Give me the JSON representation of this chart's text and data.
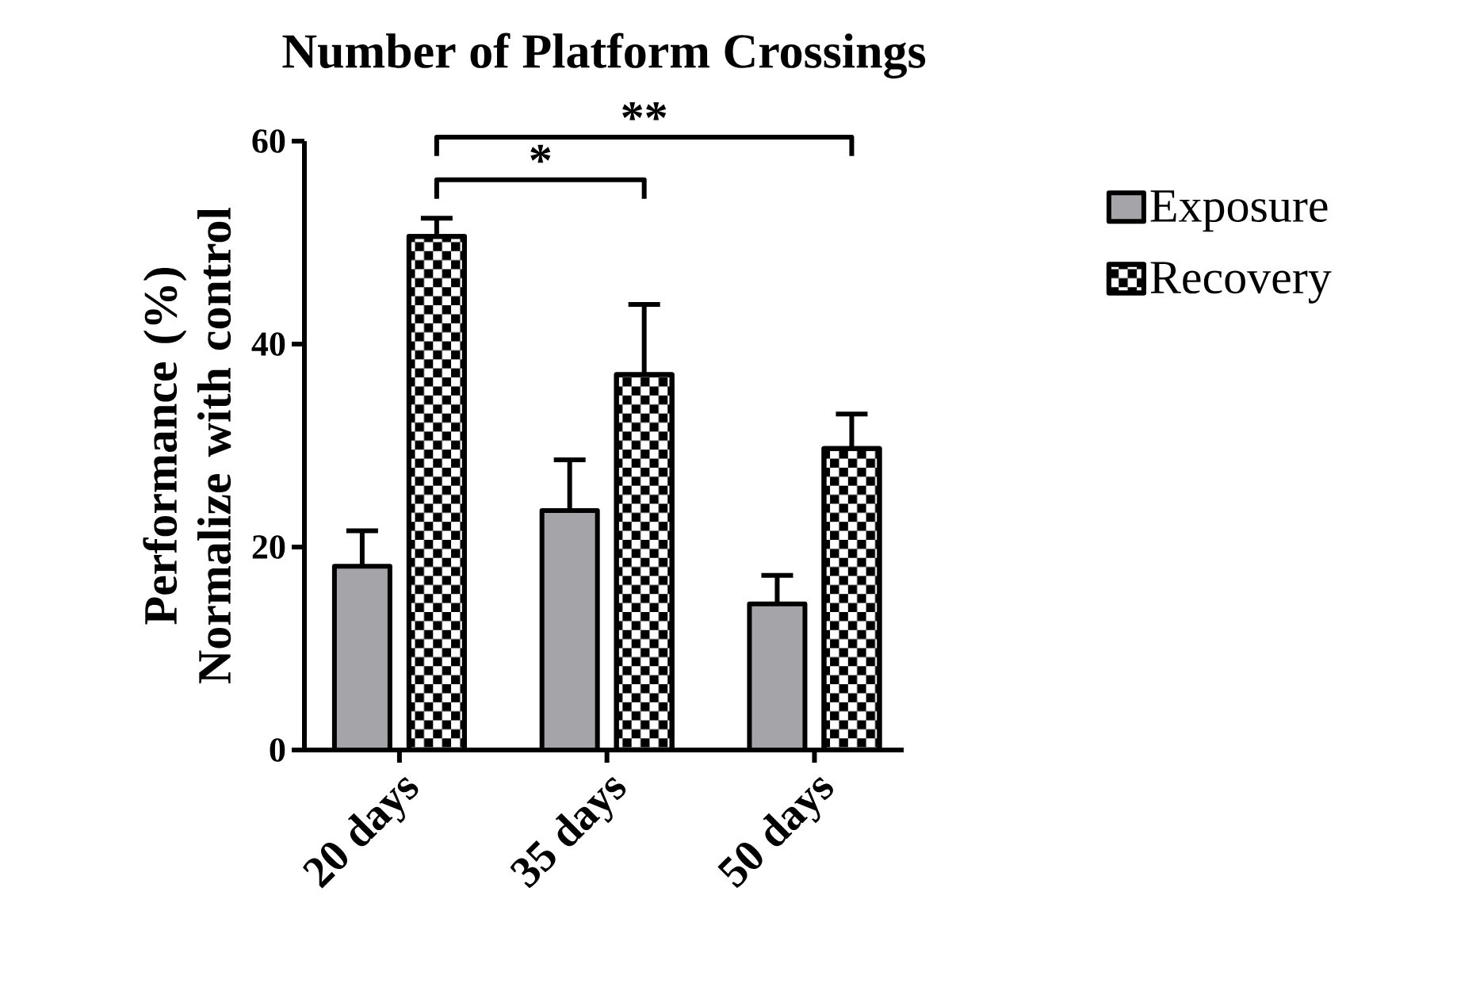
{
  "chart_data": {
    "type": "bar",
    "title": "Number of Platform Crossings",
    "ylabel": "Performance (%) Normalize with control",
    "categories": [
      "20 days",
      "35 days",
      "50 days"
    ],
    "series": [
      {
        "name": "Exposure",
        "color": "#a5a4a9",
        "values": [
          18.1,
          23.6,
          14.4
        ],
        "errors": [
          [
            18.1,
            21.6
          ],
          [
            23.6,
            28.6
          ],
          [
            14.4,
            17.2
          ]
        ]
      },
      {
        "name": "Recovery",
        "color": "#000000",
        "values": [
          50.6,
          37.0,
          29.7
        ],
        "errors": [
          [
            50.6,
            52.4
          ],
          [
            37.0,
            43.9
          ],
          [
            29.7,
            33.1
          ]
        ]
      }
    ],
    "ylim": [
      0,
      60
    ],
    "yticks": [
      0,
      20,
      40,
      60
    ],
    "legend": "right",
    "grid": false,
    "annotations": [
      "*",
      "**"
    ]
  }
}
